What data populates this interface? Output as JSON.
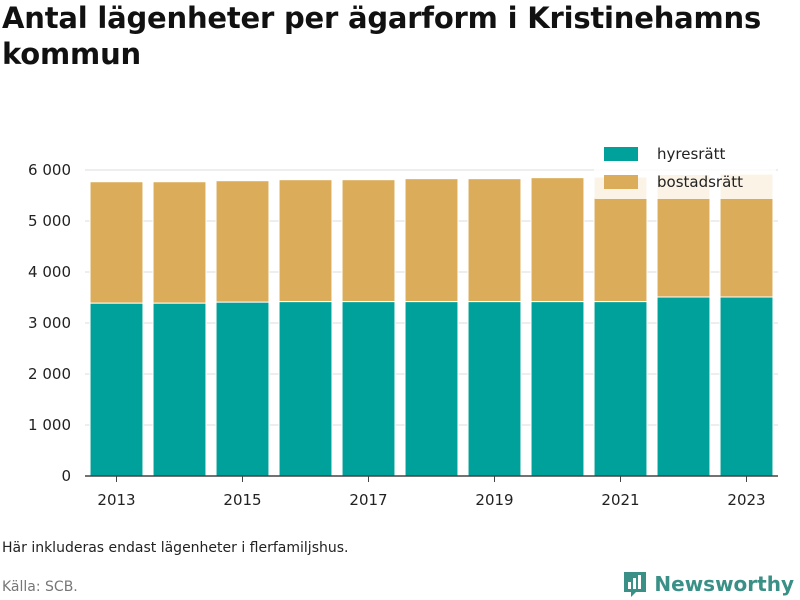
{
  "title": "Antal lägenheter per ägarform i Kristinehamns kommun",
  "note": "Här inkluderas endast lägenheter i flerfamiljshus.",
  "source": "Källa: SCB.",
  "brand": {
    "name": "Newsworthy",
    "icon": "bar-chart-logo-icon",
    "color": "#3a8f86"
  },
  "chart_data": {
    "type": "bar",
    "stacked": true,
    "categories": [
      "2013",
      "2014",
      "2015",
      "2016",
      "2017",
      "2018",
      "2019",
      "2020",
      "2021",
      "2022",
      "2023"
    ],
    "series": [
      {
        "name": "hyresrätt",
        "color": "#00a19a",
        "values": [
          3390,
          3390,
          3410,
          3420,
          3420,
          3420,
          3420,
          3420,
          3420,
          3510,
          3510
        ]
      },
      {
        "name": "bostadsrätt",
        "color": "#dbad5a",
        "values": [
          2380,
          2380,
          2380,
          2390,
          2390,
          2410,
          2410,
          2430,
          2440,
          2400,
          2410
        ]
      }
    ],
    "y_ticks": [
      0,
      1000,
      2000,
      3000,
      4000,
      5000,
      6000
    ],
    "y_tick_labels": [
      "0",
      "1 000",
      "2 000",
      "3 000",
      "4 000",
      "5 000",
      "6 000"
    ],
    "x_tick_labels": [
      "2013",
      "2015",
      "2017",
      "2019",
      "2021",
      "2023"
    ],
    "ylim": [
      0,
      6000
    ],
    "grid": true,
    "legend_position": "top-right"
  }
}
